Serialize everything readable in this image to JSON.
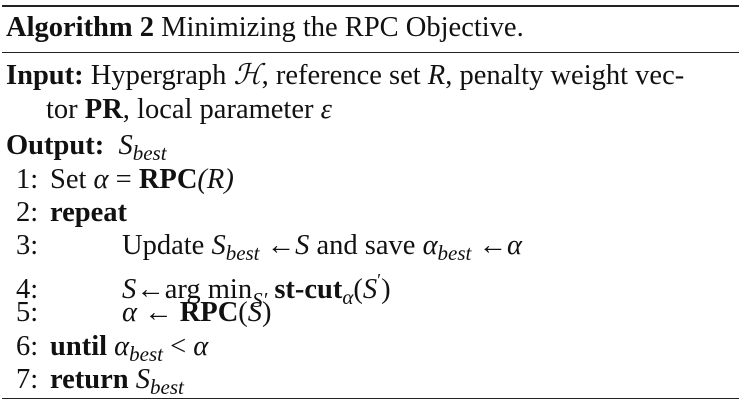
{
  "algorithm": {
    "label": "Algorithm 2",
    "title": "Minimizing the RPC Objective."
  },
  "input": {
    "label": "Input:",
    "text_a": "Hypergraph ",
    "H": "ℋ",
    "text_b": ", reference set ",
    "R": "R",
    "text_c": ", penalty weight vec-",
    "text_d": "tor ",
    "PR": "PR",
    "text_e": ", local parameter ",
    "eps": "ε"
  },
  "output": {
    "label": "Output:",
    "S": "S",
    "sub": "best"
  },
  "steps": {
    "s1": {
      "num": "1:",
      "set": "Set ",
      "alpha": "α",
      "eq": " = ",
      "rpc": "RPC",
      "arg": "(R)"
    },
    "s2": {
      "num": "2:",
      "kw": "repeat"
    },
    "s3": {
      "num": "3:",
      "upd": "Update ",
      "S": "S",
      "sub": "best",
      "arrow1": " ←",
      "S2": "S",
      "save": " and save ",
      "alpha": "α",
      "sub2": "best",
      "arrow2": " ←",
      "alpha2": "α"
    },
    "s4": {
      "num": "4:",
      "S": "S",
      "arrow": "←",
      "argmin": "arg min",
      "subS": "S",
      "subprime": "′",
      "stcut": " st-cut",
      "alphasub": "α",
      "open": "(",
      "S2": "S",
      "prime2": "′",
      "close": ")"
    },
    "s5": {
      "num": "5:",
      "alpha": "α",
      "arrow": " ← ",
      "rpc": "RPC",
      "open": "(",
      "S": "S",
      "close": ")"
    },
    "s6": {
      "num": "6:",
      "kw": "until",
      "alpha": " α",
      "sub": "best",
      "lt": " < ",
      "alpha2": "α"
    },
    "s7": {
      "num": "7:",
      "kw": "return",
      "S": " S",
      "sub": "best"
    }
  }
}
